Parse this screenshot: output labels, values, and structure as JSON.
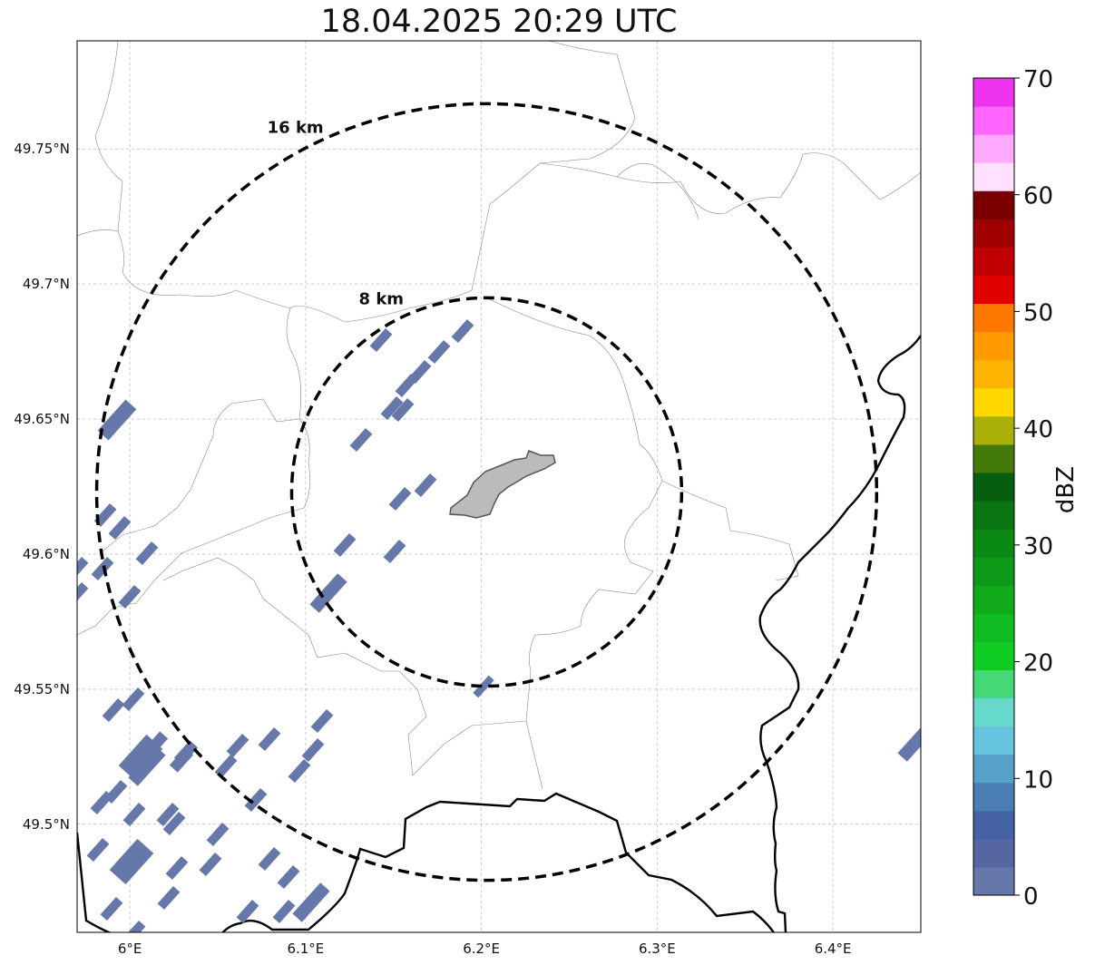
{
  "title": "18.04.2025 20:29 UTC",
  "map": {
    "lon_range": [
      5.97,
      6.45
    ],
    "lat_range": [
      49.46,
      49.79
    ],
    "grid": true,
    "x_ticks": [
      {
        "value": 6.0,
        "label": "6°E"
      },
      {
        "value": 6.1,
        "label": "6.1°E"
      },
      {
        "value": 6.2,
        "label": "6.2°E"
      },
      {
        "value": 6.3,
        "label": "6.3°E"
      },
      {
        "value": 6.4,
        "label": "6.4°E"
      }
    ],
    "y_ticks": [
      {
        "value": 49.75,
        "label": "49.75°N"
      },
      {
        "value": 49.7,
        "label": "49.7°N"
      },
      {
        "value": 49.65,
        "label": "49.65°N"
      },
      {
        "value": 49.6,
        "label": "49.6°N"
      },
      {
        "value": 49.55,
        "label": "49.55°N"
      },
      {
        "value": 49.5,
        "label": "49.5°N"
      }
    ],
    "center": {
      "lon": 6.203,
      "lat": 49.623
    },
    "range_rings": [
      {
        "radius_km": 8,
        "label": "8 km"
      },
      {
        "radius_km": 16,
        "label": "16 km"
      }
    ]
  },
  "colorbar": {
    "label": "dBZ",
    "min": 0,
    "max": 70,
    "ticks": [
      "0",
      "10",
      "20",
      "30",
      "40",
      "50",
      "60",
      "70"
    ],
    "colors": [
      "#6677aa",
      "#5566a0",
      "#4462a4",
      "#4a7db3",
      "#57a0c8",
      "#66c4df",
      "#66d9cb",
      "#44d877",
      "#11cc22",
      "#11bb22",
      "#11aa1a",
      "#0c9918",
      "#0a8a15",
      "#097612",
      "#085e10",
      "#447a0a",
      "#aab00a",
      "#ffd800",
      "#ffb400",
      "#ff9a00",
      "#ff7800",
      "#e00000",
      "#c00000",
      "#a00000",
      "#7a0000",
      "#ffe0ff",
      "#ffaaff",
      "#ff66ff",
      "#ee33ee"
    ]
  },
  "radar_echo_color": "#6677aa",
  "city_fill_color": "#bbbbbb"
}
